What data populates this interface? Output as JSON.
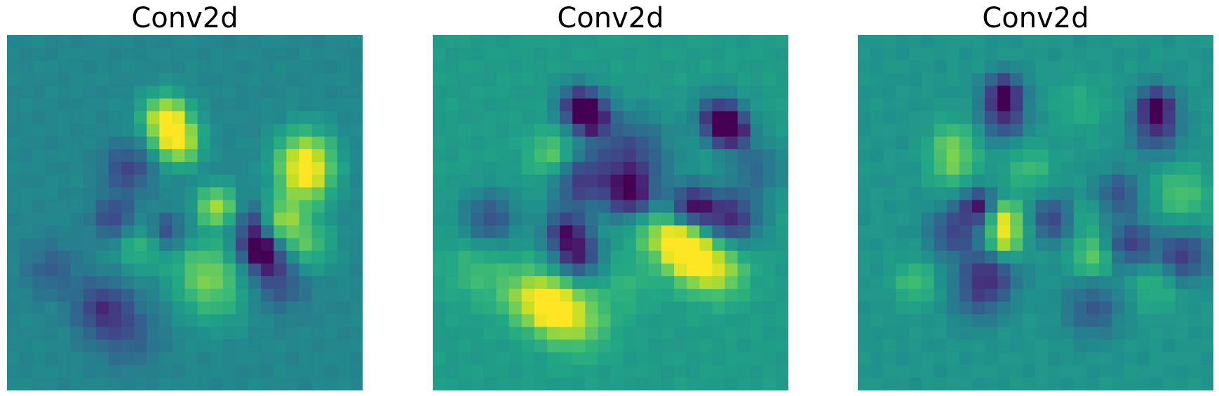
{
  "chart_data": [
    {
      "type": "heatmap",
      "title": "Conv2d",
      "colormap": "viridis",
      "axis": "off",
      "rows": 28,
      "cols": 28,
      "background": 0.46,
      "blobs": [
        {
          "r": 6,
          "c": 12,
          "h": 0.96,
          "w": 1.3
        },
        {
          "r": 8,
          "c": 13,
          "h": 0.95,
          "w": 1.2
        },
        {
          "r": 9,
          "c": 23,
          "h": 0.85,
          "w": 1.6
        },
        {
          "r": 11,
          "c": 23,
          "h": 0.82,
          "w": 1.5
        },
        {
          "r": 13,
          "c": 16,
          "h": 0.88,
          "w": 1.1
        },
        {
          "r": 14,
          "c": 21,
          "h": 0.8,
          "w": 1.2
        },
        {
          "r": 16,
          "c": 23,
          "h": 0.72,
          "w": 1.5
        },
        {
          "r": 18,
          "c": 15,
          "h": 0.7,
          "w": 1.8
        },
        {
          "r": 20,
          "c": 16,
          "h": 0.62,
          "w": 2.0
        },
        {
          "r": 16,
          "c": 10,
          "h": 0.68,
          "w": 1.5
        },
        {
          "r": 14,
          "c": 19,
          "h": 0.2,
          "w": 1.0
        },
        {
          "r": 16,
          "c": 19,
          "h": 0.02,
          "w": 0.9
        },
        {
          "r": 17,
          "c": 20,
          "h": 0.12,
          "w": 1.1
        },
        {
          "r": 10,
          "c": 9,
          "h": 0.2,
          "w": 1.3
        },
        {
          "r": 14,
          "c": 8,
          "h": 0.18,
          "w": 1.2
        },
        {
          "r": 21,
          "c": 7,
          "h": 0.18,
          "w": 1.5
        },
        {
          "r": 18,
          "c": 3,
          "h": 0.3,
          "w": 1.5
        },
        {
          "r": 19,
          "c": 21,
          "h": 0.25,
          "w": 1.5
        },
        {
          "r": 15,
          "c": 12,
          "h": 0.18,
          "w": 1.0
        },
        {
          "r": 23,
          "c": 9,
          "h": 0.3,
          "w": 1.8
        }
      ]
    },
    {
      "type": "heatmap",
      "title": "Conv2d",
      "colormap": "viridis",
      "axis": "off",
      "rows": 28,
      "cols": 28,
      "background": 0.55,
      "blobs": [
        {
          "r": 5,
          "c": 11,
          "h": 0.08,
          "w": 1.1
        },
        {
          "r": 6,
          "c": 12,
          "h": 0.05,
          "w": 1.0
        },
        {
          "r": 6,
          "c": 22,
          "h": 0.1,
          "w": 1.2
        },
        {
          "r": 7,
          "c": 23,
          "h": 0.04,
          "w": 1.0
        },
        {
          "r": 9,
          "c": 15,
          "h": 0.22,
          "w": 2.2
        },
        {
          "r": 11,
          "c": 11,
          "h": 0.2,
          "w": 1.5
        },
        {
          "r": 12,
          "c": 15,
          "h": 0.1,
          "w": 1.3
        },
        {
          "r": 13,
          "c": 20,
          "h": 0.06,
          "w": 1.2
        },
        {
          "r": 14,
          "c": 23,
          "h": 0.12,
          "w": 1.5
        },
        {
          "r": 15,
          "c": 10,
          "h": 0.12,
          "w": 1.2
        },
        {
          "r": 17,
          "c": 11,
          "h": 0.15,
          "w": 1.2
        },
        {
          "r": 14,
          "c": 4,
          "h": 0.25,
          "w": 1.5
        },
        {
          "r": 10,
          "c": 25,
          "h": 0.35,
          "w": 1.5
        },
        {
          "r": 16,
          "c": 19,
          "h": 0.98,
          "w": 1.2
        },
        {
          "r": 17,
          "c": 20,
          "h": 0.9,
          "w": 1.5
        },
        {
          "r": 18,
          "c": 22,
          "h": 0.85,
          "w": 1.6
        },
        {
          "r": 20,
          "c": 7,
          "h": 0.82,
          "w": 1.6
        },
        {
          "r": 21,
          "c": 9,
          "h": 0.95,
          "w": 1.4
        },
        {
          "r": 22,
          "c": 11,
          "h": 0.8,
          "w": 1.8
        },
        {
          "r": 9,
          "c": 9,
          "h": 0.78,
          "w": 1.3
        },
        {
          "r": 15,
          "c": 17,
          "h": 0.76,
          "w": 1.3
        },
        {
          "r": 18,
          "c": 3,
          "h": 0.68,
          "w": 1.8
        },
        {
          "r": 19,
          "c": 15,
          "h": 0.64,
          "w": 1.5
        }
      ]
    },
    {
      "type": "heatmap",
      "title": "Conv2d",
      "colormap": "viridis",
      "axis": "off",
      "rows": 28,
      "cols": 28,
      "background": 0.52,
      "blobs": [
        {
          "r": 4,
          "c": 11,
          "h": 0.04,
          "w": 1.0
        },
        {
          "r": 6,
          "c": 11,
          "h": 0.18,
          "w": 1.2
        },
        {
          "r": 5,
          "c": 23,
          "h": 0.04,
          "w": 1.0
        },
        {
          "r": 7,
          "c": 23,
          "h": 0.2,
          "w": 1.3
        },
        {
          "r": 13,
          "c": 9,
          "h": 0.08,
          "w": 1.0
        },
        {
          "r": 14,
          "c": 15,
          "h": 0.18,
          "w": 1.2
        },
        {
          "r": 15,
          "c": 7,
          "h": 0.22,
          "w": 1.4
        },
        {
          "r": 16,
          "c": 21,
          "h": 0.18,
          "w": 1.3
        },
        {
          "r": 17,
          "c": 25,
          "h": 0.15,
          "w": 1.4
        },
        {
          "r": 18,
          "c": 10,
          "h": 0.22,
          "w": 1.5
        },
        {
          "r": 20,
          "c": 9,
          "h": 0.3,
          "w": 1.6
        },
        {
          "r": 21,
          "c": 18,
          "h": 0.28,
          "w": 1.6
        },
        {
          "r": 12,
          "c": 20,
          "h": 0.25,
          "w": 1.2
        },
        {
          "r": 14,
          "c": 11,
          "h": 0.95,
          "w": 1.0
        },
        {
          "r": 16,
          "c": 11,
          "h": 0.9,
          "w": 1.0
        },
        {
          "r": 8,
          "c": 7,
          "h": 0.72,
          "w": 1.3
        },
        {
          "r": 10,
          "c": 7,
          "h": 0.7,
          "w": 1.3
        },
        {
          "r": 10,
          "c": 13,
          "h": 0.68,
          "w": 1.3
        },
        {
          "r": 12,
          "c": 25,
          "h": 0.72,
          "w": 1.5
        },
        {
          "r": 17,
          "c": 18,
          "h": 0.78,
          "w": 1.1
        },
        {
          "r": 19,
          "c": 4,
          "h": 0.7,
          "w": 1.2
        },
        {
          "r": 19,
          "c": 23,
          "h": 0.68,
          "w": 1.5
        },
        {
          "r": 14,
          "c": 17,
          "h": 0.66,
          "w": 1.1
        },
        {
          "r": 5,
          "c": 17,
          "h": 0.62,
          "w": 1.5
        }
      ]
    }
  ]
}
